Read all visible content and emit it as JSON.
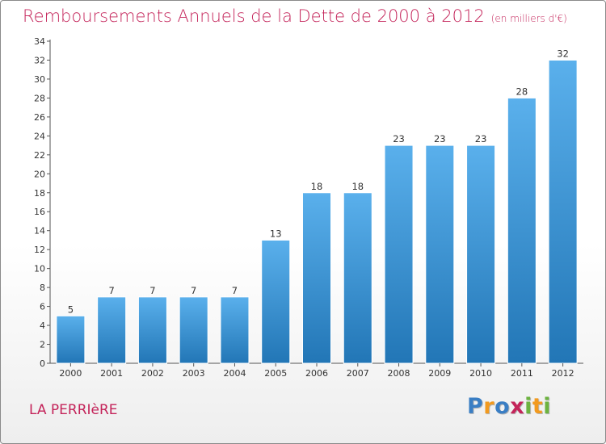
{
  "header": {
    "title": "Remboursements Annuels de la Dette de 2000 à 2012",
    "unit": "(en milliers d'€)"
  },
  "footer": {
    "commune": "LA PERRIèRE",
    "logo_letters": [
      "P",
      "r",
      "o",
      "x",
      "i",
      "t",
      "i"
    ],
    "logo_colors": [
      "#3a7ec4",
      "#f29a1f",
      "#3a7ec4",
      "#c4245a",
      "#6cb33f",
      "#f29a1f",
      "#6cb33f"
    ]
  },
  "colors": {
    "bar_top": "#5ab0ec",
    "bar_bottom": "#2276b6",
    "title": "#c4245a"
  },
  "chart_data": {
    "type": "bar",
    "title": "Remboursements Annuels de la Dette de 2000 à 2012",
    "categories": [
      "2000",
      "2001",
      "2002",
      "2003",
      "2004",
      "2005",
      "2006",
      "2007",
      "2008",
      "2009",
      "2010",
      "2011",
      "2012"
    ],
    "values": [
      5,
      7,
      7,
      7,
      7,
      13,
      18,
      18,
      23,
      23,
      23,
      28,
      32
    ],
    "ylim": [
      0,
      34
    ],
    "yticks": [
      0,
      2,
      4,
      6,
      8,
      10,
      12,
      14,
      16,
      18,
      20,
      22,
      24,
      26,
      28,
      30,
      32,
      34
    ],
    "grid": false,
    "data_labels": true
  }
}
